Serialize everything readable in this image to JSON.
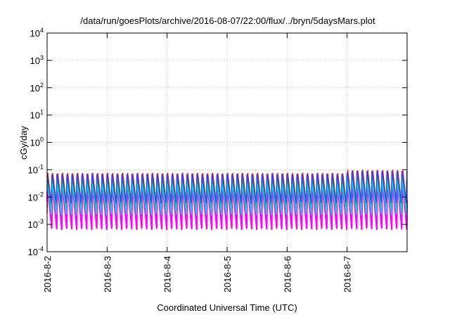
{
  "chart_data": {
    "type": "line",
    "title": "/data/run/goesPlots/archive/2016-08-07/22:00/flux/../bryn/5daysMars.plot",
    "xlabel": "Coordinated Universal Time (UTC)",
    "ylabel": "cGy/day",
    "yscale": "log",
    "ylim": [
      0.0001,
      10000
    ],
    "y_tick_labels": [
      {
        "base": "10",
        "exp": "4"
      },
      {
        "base": "10",
        "exp": "3"
      },
      {
        "base": "10",
        "exp": "2"
      },
      {
        "base": "10",
        "exp": "1"
      },
      {
        "base": "10",
        "exp": "0"
      },
      {
        "base": "10",
        "exp": "-1"
      },
      {
        "base": "10",
        "exp": "-2"
      },
      {
        "base": "10",
        "exp": "-3"
      },
      {
        "base": "10",
        "exp": "-4"
      }
    ],
    "xlim": [
      "2016-08-02",
      "2016-08-08"
    ],
    "x_tick_labels": [
      "2016-8-2",
      "2016-8-3",
      "2016-8-4",
      "2016-8-5",
      "2016-8-6",
      "2016-8-7"
    ],
    "grid": true,
    "pattern": {
      "description": "sawtooth oscillation, roughly 12 cycles per day, 6 overlapping series",
      "cycles_per_day": 12,
      "peak_before_2016-8-7": 0.07,
      "peak_after_2016-8-7": 0.09
    },
    "series": [
      {
        "color": "#ff0000",
        "peak": 0.075,
        "trough": 0.0025
      },
      {
        "color": "#8b008b",
        "peak": 0.06,
        "trough": 0.0011
      },
      {
        "color": "#ff00ff",
        "peak": 0.028,
        "trough": 0.00065
      },
      {
        "color": "#00c000",
        "peak": 0.045,
        "trough": 0.004
      },
      {
        "color": "#00e0e0",
        "peak": 0.032,
        "trough": 0.0022
      },
      {
        "color": "#2050ff",
        "peak": 0.07,
        "trough": 0.006
      }
    ]
  }
}
